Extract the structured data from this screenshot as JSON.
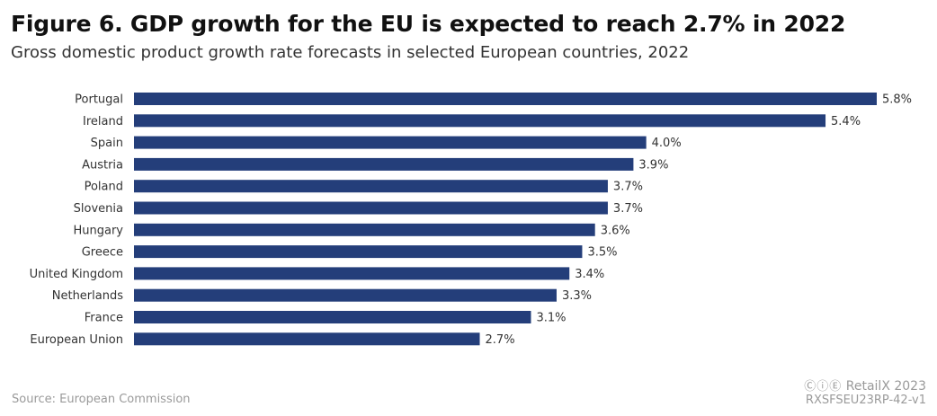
{
  "title": "Figure 6. GDP growth for the EU is expected to reach 2.7% in 2022",
  "subtitle": "Gross domestic product growth rate forecasts in selected European countries, 2022",
  "source": "Source: European Commission",
  "brand": {
    "license_icons": "ⒸⓘⒺ",
    "name": "RetailX 2023"
  },
  "code": "RXSFSEU23RP-42-v1",
  "colors": {
    "bar": "#243e7a"
  },
  "chart_data": {
    "type": "bar",
    "orientation": "horizontal",
    "title": "Figure 6. GDP growth for the EU is expected to reach 2.7% in 2022",
    "subtitle": "Gross domestic product growth rate forecasts in selected European countries, 2022",
    "xlabel": "",
    "ylabel": "",
    "unit": "%",
    "grid": false,
    "xlim": [
      0,
      5.8
    ],
    "categories": [
      "Portugal",
      "Ireland",
      "Spain",
      "Austria",
      "Poland",
      "Slovenia",
      "Hungary",
      "Greece",
      "United Kingdom",
      "Netherlands",
      "France",
      "European Union"
    ],
    "values": [
      5.8,
      5.4,
      4.0,
      3.9,
      3.7,
      3.7,
      3.6,
      3.5,
      3.4,
      3.3,
      3.1,
      2.7
    ],
    "value_labels": [
      "5.8%",
      "5.4%",
      "4.0%",
      "3.9%",
      "3.7%",
      "3.7%",
      "3.6%",
      "3.5%",
      "3.4%",
      "3.3%",
      "3.1%",
      "2.7%"
    ]
  }
}
